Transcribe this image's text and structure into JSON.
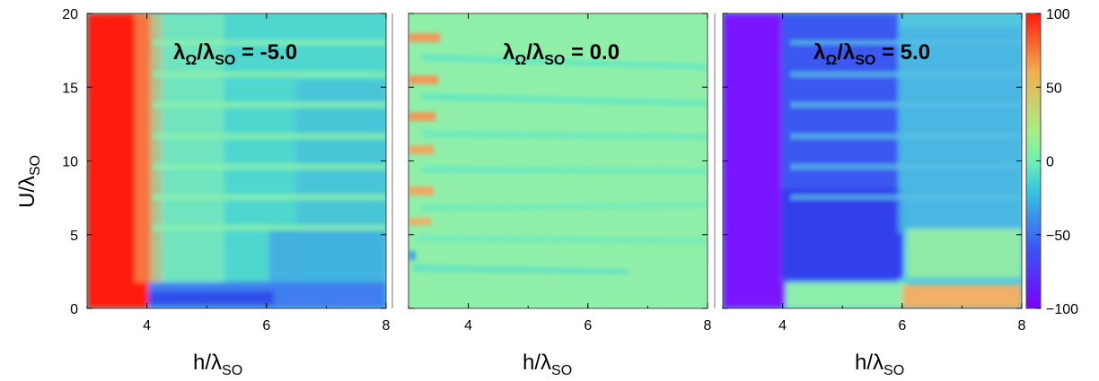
{
  "chart_data": [
    {
      "type": "heatmap",
      "title": "λ_Ω/λ_SO = -5.0",
      "title_parts": {
        "main": "λ",
        "sub1": "Ω",
        "mid": "/λ",
        "sub2": "SO",
        "rest": " = -5.0"
      },
      "ratio": -5.0,
      "xlabel": {
        "main": "h/λ",
        "sub": "SO"
      },
      "ylabel": {
        "main": "U/λ",
        "sub": "SO"
      },
      "xlim": [
        3,
        8
      ],
      "ylim": [
        0,
        20
      ],
      "xticks": [
        "4",
        "6",
        "8"
      ],
      "yticks": [
        "0",
        "5",
        "10",
        "15",
        "20"
      ]
    },
    {
      "type": "heatmap",
      "title": "λ_Ω/λ_SO = 0.0",
      "title_parts": {
        "main": "λ",
        "sub1": "Ω",
        "mid": "/λ",
        "sub2": "SO",
        "rest": " = 0.0"
      },
      "ratio": 0.0,
      "xlabel": {
        "main": "h/λ",
        "sub": "SO"
      },
      "xlim": [
        3,
        8
      ],
      "ylim": [
        0,
        20
      ],
      "xticks": [
        "4",
        "6",
        "8"
      ]
    },
    {
      "type": "heatmap",
      "title": "λ_Ω/λ_SO = 5.0",
      "title_parts": {
        "main": "λ",
        "sub1": "Ω",
        "mid": "/λ",
        "sub2": "SO",
        "rest": " = 5.0"
      },
      "ratio": 5.0,
      "xlabel": {
        "main": "h/λ",
        "sub": "SO"
      },
      "xlim": [
        3,
        8
      ],
      "ylim": [
        0,
        20
      ],
      "xticks": [
        "4",
        "6",
        "8"
      ]
    }
  ],
  "colorbar": {
    "range": [
      -100,
      100
    ],
    "ticks": [
      "100",
      "50",
      "0",
      "−50",
      "−100"
    ],
    "colormap": "rainbow"
  }
}
